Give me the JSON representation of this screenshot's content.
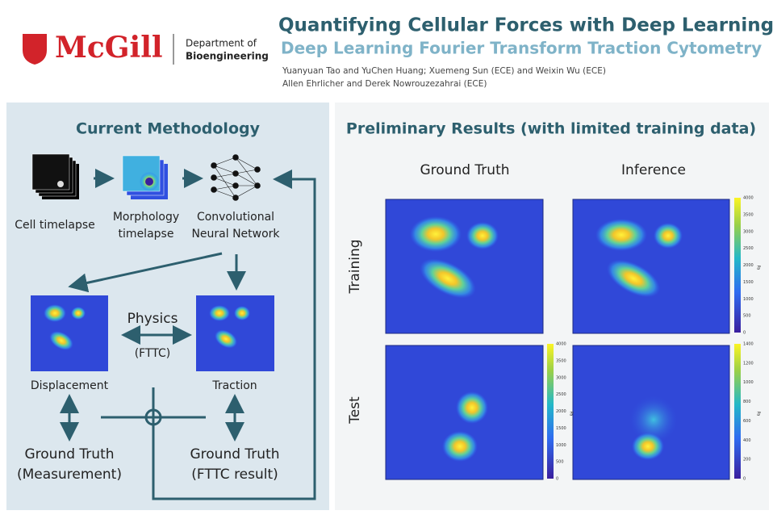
{
  "header": {
    "logo": "McGill",
    "department": [
      "Department of",
      "Bioengineering"
    ],
    "title": "Quantifying Cellular Forces with Deep Learning",
    "subtitle": "Deep Learning Fourier Transform Traction Cytometry",
    "authors": [
      "Yuanyuan Tao and YuChen Huang; Xuemeng Sun (ECE) and Weixin Wu (ECE)",
      "Allen Ehrlicher and Derek Nowrouzezahrai (ECE)"
    ]
  },
  "methodology": {
    "title": "Current Methodology",
    "cell_timelapse": "Cell timelapse",
    "morphology": [
      "Morphology",
      "timelapse"
    ],
    "cnn": [
      "Convolutional",
      "Neural Network"
    ],
    "physics": [
      "Physics",
      "(FTTC)"
    ],
    "displacement": "Displacement",
    "traction": "Traction",
    "gt_measurement": [
      "Ground Truth",
      "(Measurement)"
    ],
    "gt_fttc": [
      "Ground Truth",
      "(FTTC result)"
    ]
  },
  "results": {
    "title": "Preliminary Results (with limited training data)",
    "columns": [
      "Ground Truth",
      "Inference"
    ],
    "rows": [
      "Training",
      "Test"
    ],
    "colorbars": [
      {
        "ticks": [
          4000,
          3500,
          3000,
          2500,
          2000,
          1500,
          1000,
          500,
          0
        ],
        "unit": "Pa"
      },
      {
        "ticks": [
          4000,
          3500,
          3000,
          2500,
          2000,
          1500,
          1000,
          500,
          0
        ],
        "unit": "Pa"
      },
      {
        "ticks": [
          1400,
          1200,
          1000,
          800,
          600,
          400,
          200,
          0
        ],
        "unit": "Pa"
      }
    ]
  }
}
